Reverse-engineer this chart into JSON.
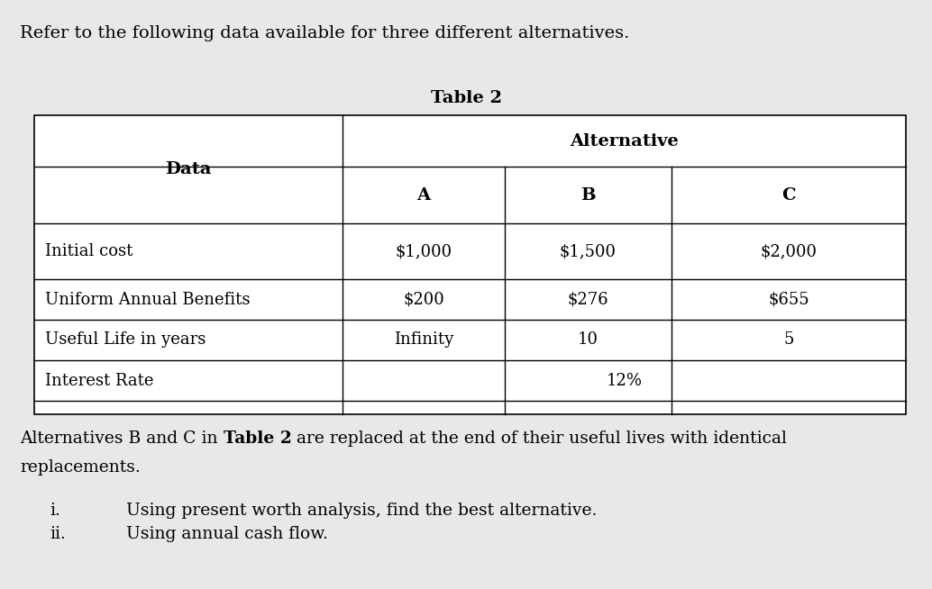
{
  "background_color": "#e8e8e8",
  "title_text": "Refer to the following data available for three different alternatives.",
  "table_title": "Table 2",
  "col_header_data": "Data",
  "col_header_alt": "Alternative",
  "sub_headers": [
    "A",
    "B",
    "C"
  ],
  "row_labels": [
    "Initial cost",
    "Uniform Annual Benefits",
    "Useful Life in years",
    "Interest Rate"
  ],
  "data_A": [
    "$1,000",
    "$200",
    "Infinity",
    ""
  ],
  "data_B": [
    "$1,500",
    "$276",
    "10",
    ""
  ],
  "data_C": [
    "$2,000",
    "$655",
    "5",
    ""
  ],
  "interest_rate_label": "12%",
  "para_part1": "Alternatives B and C in ",
  "para_bold": "Table 2",
  "para_part2": " are replaced at the end of their useful lives with identical",
  "para_line2": "replacements.",
  "list_labels": [
    "i.",
    "ii."
  ],
  "list_items": [
    "Using present worth analysis, find the best alternative.",
    "Using annual cash flow."
  ],
  "title_fontsize": 14,
  "table_title_fontsize": 14,
  "table_fontsize": 13,
  "para_fontsize": 13.5,
  "list_fontsize": 13.5
}
